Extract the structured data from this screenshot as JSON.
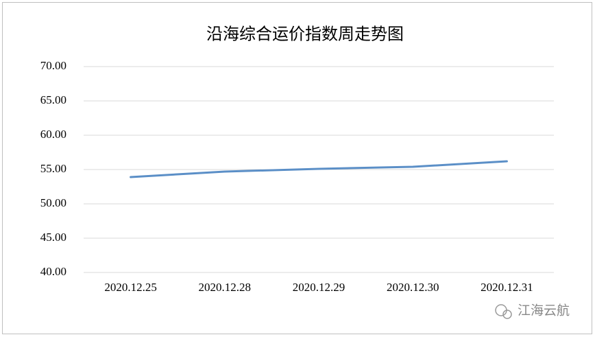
{
  "chart_data": {
    "type": "line",
    "title": "沿海综合运价指数周走势图",
    "categories": [
      "2020.12.25",
      "2020.12.28",
      "2020.12.29",
      "2020.12.30",
      "2020.12.31"
    ],
    "values": [
      53.9,
      54.7,
      55.1,
      55.4,
      56.2
    ],
    "color": "#5b8fc7",
    "ylim": [
      40,
      70
    ],
    "yticks": [
      {
        "value": 40,
        "label": "40.00"
      },
      {
        "value": 45,
        "label": "45.00"
      },
      {
        "value": 50,
        "label": "50.00"
      },
      {
        "value": 55,
        "label": "55.00"
      },
      {
        "value": 60,
        "label": "60.00"
      },
      {
        "value": 65,
        "label": "65.00"
      },
      {
        "value": 70,
        "label": "70.00"
      }
    ],
    "grid": true,
    "annotation": "江海云航"
  }
}
